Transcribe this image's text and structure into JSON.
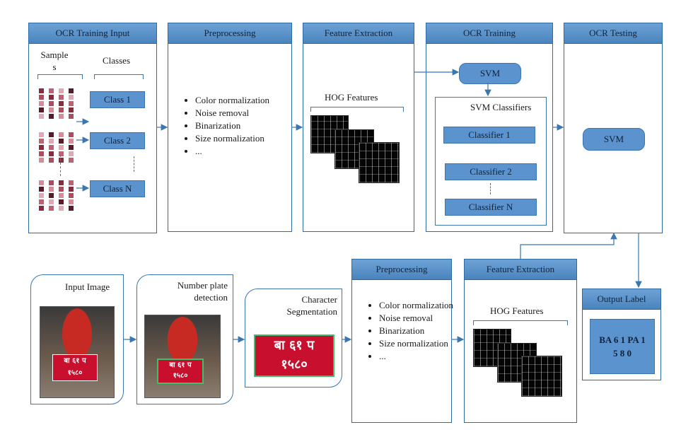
{
  "training": {
    "input": {
      "title": "OCR Training Input",
      "samples_label": "Sample\ns",
      "classes_label": "Classes",
      "classes": [
        "Class 1",
        "Class 2",
        "Class N"
      ]
    },
    "preprocessing": {
      "title": "Preprocessing",
      "items": [
        "Color normalization",
        "Noise removal",
        "Binarization",
        "Size normalization",
        "..."
      ]
    },
    "feature_extraction": {
      "title": "Feature Extraction",
      "hog_label": "HOG Features"
    },
    "ocr_training": {
      "title": "OCR Training",
      "svm": "SVM",
      "classifiers_label": "SVM Classifiers",
      "classifiers": [
        "Classifier 1",
        "Classifier 2",
        "Classifier N"
      ]
    },
    "ocr_testing": {
      "title": "OCR Testing",
      "svm": "SVM"
    }
  },
  "testing": {
    "input_image": {
      "label": "Input Image",
      "plate_top": "बा ६१ प",
      "plate_bottom": "१५८०"
    },
    "plate_detection": {
      "label": "Number plate detection"
    },
    "segmentation": {
      "label": "Character Segmentation"
    },
    "preprocessing": {
      "title": "Preprocessing",
      "items": [
        "Color normalization",
        "Noise removal",
        "Binarization",
        "Size normalization",
        "..."
      ]
    },
    "feature_extraction": {
      "title": "Feature Extraction",
      "hog_label": "HOG Features"
    },
    "output": {
      "title": "Output Label",
      "value": "BA 6 1 PA 1 5 8 0"
    }
  },
  "colors": {
    "accent": "#5b93cf",
    "border": "#2e6aa3",
    "plate": "#c8102e"
  }
}
